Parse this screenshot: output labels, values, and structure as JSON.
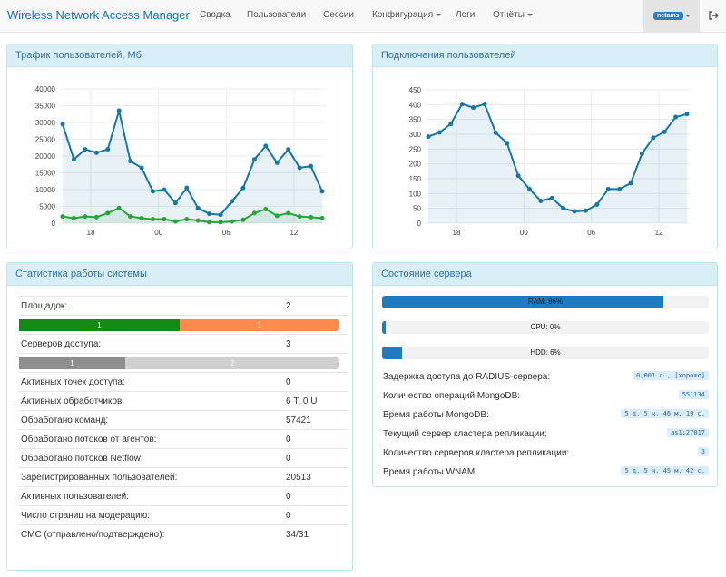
{
  "app": {
    "title": "Wireless Network Access Manager"
  },
  "nav": {
    "items": [
      {
        "label": "Сводка"
      },
      {
        "label": "Пользователи"
      },
      {
        "label": "Сессии"
      },
      {
        "label": "Конфигурация"
      },
      {
        "label": "Логи"
      },
      {
        "label": "Отчёты"
      }
    ],
    "user": "netams",
    "icons": {
      "logout": "logout-icon",
      "caret": "chevron-down-icon"
    }
  },
  "traffic_panel": {
    "title": "Трафик пользователей, Мб"
  },
  "connections_panel": {
    "title": "Подключения пользователей"
  },
  "stats_panel": {
    "title": "Статистика работы системы",
    "sites_label": "Площадок:",
    "sites_value": "2",
    "sites_bar": [
      {
        "label": "1",
        "fraction": 0.5,
        "color": "#148a14"
      },
      {
        "label": "1",
        "fraction": 0.5,
        "color": "#ff8a4c"
      }
    ],
    "servers_label": "Серверов доступа:",
    "servers_value": "3",
    "servers_bar": [
      {
        "label": "1",
        "fraction": 0.33,
        "color": "#8e8e8e"
      },
      {
        "label": "2",
        "fraction": 0.67,
        "color": "#cfcfcf"
      }
    ],
    "rows": [
      {
        "label": "Активных точек доступа:",
        "value": "0"
      },
      {
        "label": "Активных обработчиков:",
        "value": "6 Т, 0 U"
      },
      {
        "label": "Обработано команд:",
        "value": "57421"
      },
      {
        "label": "Обработано потоков от агентов:",
        "value": "0"
      },
      {
        "label": "Обработано потоков Netflow:",
        "value": "0"
      },
      {
        "label": "Зарегистрированных пользователей:",
        "value": "20513"
      },
      {
        "label": "Активных пользователей:",
        "value": "0"
      },
      {
        "label": "Число страниц на модерацию:",
        "value": "0"
      },
      {
        "label": "СМС (отправлено/подтверждено):",
        "value": "34/31"
      }
    ]
  },
  "server_panel": {
    "title": "Состояние сервера",
    "bars": [
      {
        "label": "RAM: 86%",
        "percent": 86
      },
      {
        "label": "CPU: 0%",
        "percent": 0
      },
      {
        "label": "HDD: 6%",
        "percent": 6
      }
    ],
    "rows": [
      {
        "label": "Задержка доступа до RADIUS-сервера:",
        "value": "0,001 с., [хорошо]"
      },
      {
        "label": "Количество операций MongoDB:",
        "value": "551134"
      },
      {
        "label": "Время работы MongoDB:",
        "value": "5 д. 5 ч. 46 м. 19 с."
      },
      {
        "label": "Текущий сервер кластера репликации:",
        "value": "as1:27017"
      },
      {
        "label": "Количество серверов кластера репликации:",
        "value": "3"
      },
      {
        "label": "Время работы WNAM:",
        "value": "5 д. 5 ч. 45 м. 42 с."
      }
    ]
  },
  "chart_data": [
    {
      "type": "area",
      "title": "Трафик пользователей, Мб",
      "x_ticks": [
        "18",
        "00",
        "06",
        "12"
      ],
      "x_tick_index": [
        2.5,
        8.5,
        14.5,
        20.5
      ],
      "ylim": [
        0,
        40000
      ],
      "y_ticks": [
        0,
        5000,
        10000,
        15000,
        20000,
        25000,
        30000,
        35000,
        40000
      ],
      "grid": true,
      "series": [
        {
          "color": "#1478a6",
          "values": [
            29500,
            19000,
            22000,
            21000,
            22000,
            33500,
            18500,
            16500,
            9500,
            10000,
            6000,
            10500,
            4500,
            2800,
            2500,
            6500,
            10500,
            19000,
            23000,
            18000,
            22000,
            16500,
            17000,
            9500
          ]
        },
        {
          "color": "#2aa43a",
          "values": [
            2000,
            1500,
            2000,
            1800,
            3000,
            4500,
            2000,
            1500,
            1200,
            1200,
            500,
            1200,
            800,
            300,
            300,
            500,
            1000,
            3000,
            4200,
            2200,
            3000,
            2000,
            1800,
            1500
          ]
        }
      ]
    },
    {
      "type": "area",
      "title": "Подключения пользователей",
      "x_ticks": [
        "18",
        "00",
        "06",
        "12"
      ],
      "x_tick_index": [
        2.5,
        8.5,
        14.5,
        20.5
      ],
      "ylim": [
        0,
        450
      ],
      "y_ticks": [
        0,
        50,
        100,
        150,
        200,
        250,
        300,
        350,
        400,
        450
      ],
      "grid": true,
      "series": [
        {
          "color": "#1478a6",
          "values": [
            292,
            306,
            335,
            402,
            390,
            402,
            305,
            270,
            160,
            115,
            75,
            85,
            50,
            40,
            42,
            63,
            115,
            115,
            135,
            235,
            288,
            308,
            358,
            368
          ]
        }
      ]
    }
  ]
}
